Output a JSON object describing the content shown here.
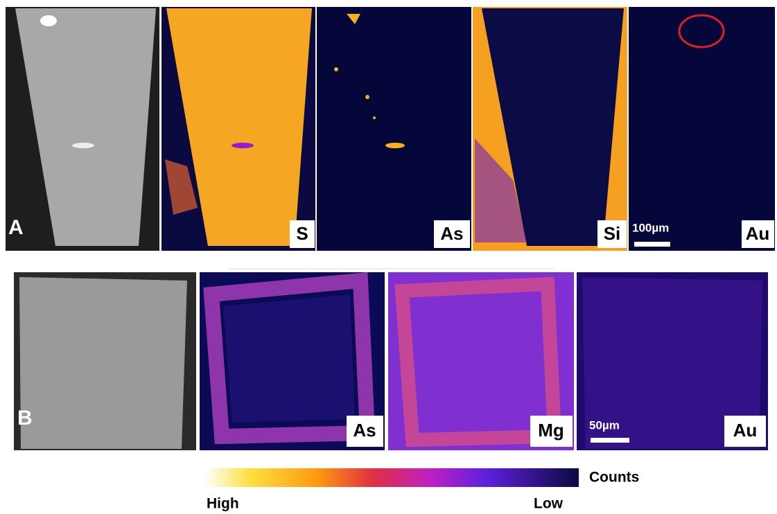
{
  "panel_a": {
    "label": "A",
    "maps": [
      "S",
      "As",
      "Si",
      "Au"
    ],
    "scale_bar": "100µm"
  },
  "panel_b": {
    "label": "B",
    "maps": [
      "As",
      "Mg",
      "Au"
    ],
    "scale_bar": "50µm"
  },
  "colorbar": {
    "title": "Counts",
    "high": "High",
    "low": "Low"
  }
}
